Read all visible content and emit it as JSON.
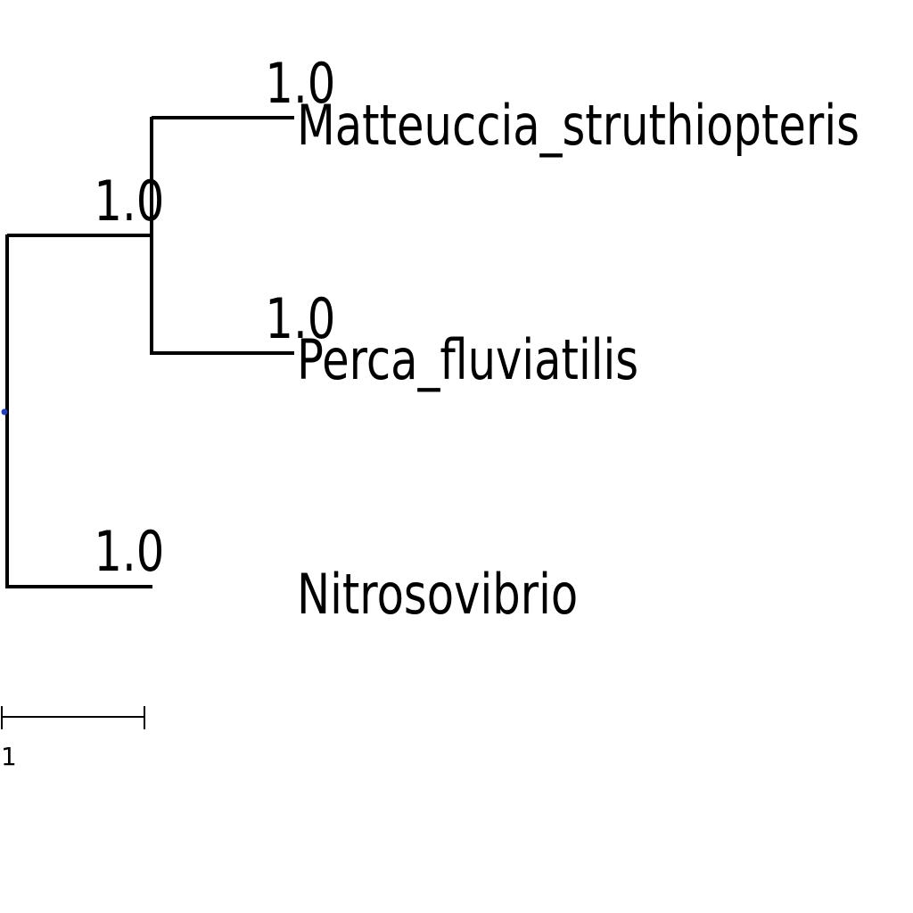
{
  "tree": {
    "root_marker_color": "#1f3fbf",
    "branch_color": "#000000",
    "leaves": [
      {
        "name": "Matteuccia_struthiopteris",
        "support": "1.0"
      },
      {
        "name": "Perca_fluviatilis",
        "support": "1.0"
      },
      {
        "name": "Nitrosovibrio",
        "support": "1.0"
      }
    ],
    "internal_nodes": [
      {
        "support": "1.0"
      }
    ]
  },
  "scale_bar": {
    "label": "1"
  }
}
